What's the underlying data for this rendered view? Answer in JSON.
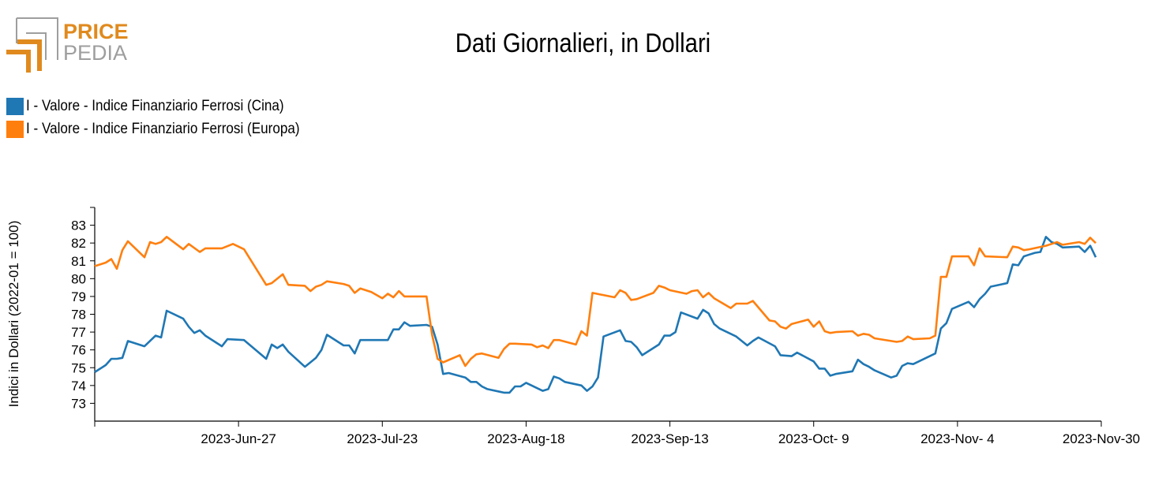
{
  "logo": {
    "line1": "PRICE",
    "line2": "PEDIA",
    "colors": {
      "orange": "#e08a1e",
      "gray": "#9e9e9e"
    }
  },
  "chart_data": {
    "type": "line",
    "title": "Dati Giornalieri, in Dollari",
    "ylabel": "Indici in Dollari (2022-01 = 100)",
    "xlabel": "",
    "x_range": [
      "2023-06-01",
      "2023-11-30"
    ],
    "ylim": [
      72,
      84
    ],
    "y_ticks": [
      73,
      74,
      75,
      76,
      77,
      78,
      79,
      80,
      81,
      82,
      83
    ],
    "x_ticks": [
      {
        "date": "2023-06-27",
        "label": "2023-Jun-27"
      },
      {
        "date": "2023-07-23",
        "label": "2023-Jul-23"
      },
      {
        "date": "2023-08-18",
        "label": "2023-Aug-18"
      },
      {
        "date": "2023-09-13",
        "label": "2023-Sep-13"
      },
      {
        "date": "2023-10-09",
        "label": "2023-Oct- 9"
      },
      {
        "date": "2023-11-04",
        "label": "2023-Nov- 4"
      },
      {
        "date": "2023-11-30",
        "label": "2023-Nov-30"
      }
    ],
    "legend_position": "top-left",
    "grid": false,
    "series": [
      {
        "name": "I - Valore - Indice Finanziario Ferrosi (Cina)",
        "color": "#1f77b4",
        "points": [
          [
            "2023-06-01",
            74.75
          ],
          [
            "2023-06-02",
            74.95
          ],
          [
            "2023-06-03",
            75.15
          ],
          [
            "2023-06-04",
            75.5
          ],
          [
            "2023-06-05",
            75.5
          ],
          [
            "2023-06-06",
            75.55
          ],
          [
            "2023-06-07",
            76.5
          ],
          [
            "2023-06-10",
            76.2
          ],
          [
            "2023-06-12",
            76.8
          ],
          [
            "2023-06-13",
            76.7
          ],
          [
            "2023-06-14",
            78.2
          ],
          [
            "2023-06-17",
            77.75
          ],
          [
            "2023-06-18",
            77.3
          ],
          [
            "2023-06-19",
            76.95
          ],
          [
            "2023-06-20",
            77.1
          ],
          [
            "2023-06-21",
            76.8
          ],
          [
            "2023-06-24",
            76.2
          ],
          [
            "2023-06-25",
            76.6
          ],
          [
            "2023-06-28",
            76.55
          ],
          [
            "2023-07-02",
            75.5
          ],
          [
            "2023-07-03",
            76.3
          ],
          [
            "2023-07-04",
            76.1
          ],
          [
            "2023-07-05",
            76.3
          ],
          [
            "2023-07-06",
            75.9
          ],
          [
            "2023-07-09",
            75.05
          ],
          [
            "2023-07-10",
            75.3
          ],
          [
            "2023-07-11",
            75.55
          ],
          [
            "2023-07-12",
            76.0
          ],
          [
            "2023-07-13",
            76.85
          ],
          [
            "2023-07-16",
            76.25
          ],
          [
            "2023-07-17",
            76.25
          ],
          [
            "2023-07-18",
            75.8
          ],
          [
            "2023-07-19",
            76.55
          ],
          [
            "2023-07-24",
            76.55
          ],
          [
            "2023-07-25",
            77.15
          ],
          [
            "2023-07-26",
            77.15
          ],
          [
            "2023-07-27",
            77.55
          ],
          [
            "2023-07-28",
            77.35
          ],
          [
            "2023-07-31",
            77.4
          ],
          [
            "2023-08-01",
            77.3
          ],
          [
            "2023-08-02",
            76.3
          ],
          [
            "2023-08-03",
            74.65
          ],
          [
            "2023-08-04",
            74.7
          ],
          [
            "2023-08-07",
            74.45
          ],
          [
            "2023-08-08",
            74.2
          ],
          [
            "2023-08-09",
            74.2
          ],
          [
            "2023-08-10",
            73.95
          ],
          [
            "2023-08-11",
            73.8
          ],
          [
            "2023-08-14",
            73.6
          ],
          [
            "2023-08-15",
            73.6
          ],
          [
            "2023-08-16",
            73.95
          ],
          [
            "2023-08-17",
            73.95
          ],
          [
            "2023-08-18",
            74.15
          ],
          [
            "2023-08-21",
            73.7
          ],
          [
            "2023-08-22",
            73.8
          ],
          [
            "2023-08-23",
            74.5
          ],
          [
            "2023-08-24",
            74.4
          ],
          [
            "2023-08-25",
            74.2
          ],
          [
            "2023-08-28",
            74.0
          ],
          [
            "2023-08-29",
            73.7
          ],
          [
            "2023-08-30",
            73.95
          ],
          [
            "2023-08-31",
            74.45
          ],
          [
            "2023-09-01",
            76.75
          ],
          [
            "2023-09-04",
            77.1
          ],
          [
            "2023-09-05",
            76.5
          ],
          [
            "2023-09-06",
            76.45
          ],
          [
            "2023-09-07",
            76.15
          ],
          [
            "2023-09-08",
            75.7
          ],
          [
            "2023-09-11",
            76.3
          ],
          [
            "2023-09-12",
            76.8
          ],
          [
            "2023-09-13",
            76.8
          ],
          [
            "2023-09-14",
            77.0
          ],
          [
            "2023-09-15",
            78.1
          ],
          [
            "2023-09-18",
            77.75
          ],
          [
            "2023-09-19",
            78.25
          ],
          [
            "2023-09-20",
            78.05
          ],
          [
            "2023-09-21",
            77.45
          ],
          [
            "2023-09-22",
            77.2
          ],
          [
            "2023-09-25",
            76.75
          ],
          [
            "2023-09-26",
            76.5
          ],
          [
            "2023-09-27",
            76.25
          ],
          [
            "2023-09-28",
            76.5
          ],
          [
            "2023-09-29",
            76.7
          ],
          [
            "2023-10-02",
            76.2
          ],
          [
            "2023-10-03",
            75.7
          ],
          [
            "2023-10-05",
            75.65
          ],
          [
            "2023-10-06",
            75.85
          ],
          [
            "2023-10-09",
            75.35
          ],
          [
            "2023-10-10",
            74.95
          ],
          [
            "2023-10-11",
            74.95
          ],
          [
            "2023-10-12",
            74.55
          ],
          [
            "2023-10-13",
            74.65
          ],
          [
            "2023-10-16",
            74.8
          ],
          [
            "2023-10-17",
            75.45
          ],
          [
            "2023-10-18",
            75.2
          ],
          [
            "2023-10-19",
            75.05
          ],
          [
            "2023-10-20",
            74.85
          ],
          [
            "2023-10-23",
            74.45
          ],
          [
            "2023-10-24",
            74.55
          ],
          [
            "2023-10-25",
            75.1
          ],
          [
            "2023-10-26",
            75.25
          ],
          [
            "2023-10-27",
            75.2
          ],
          [
            "2023-10-30",
            75.65
          ],
          [
            "2023-10-31",
            75.8
          ],
          [
            "2023-11-01",
            77.2
          ],
          [
            "2023-11-02",
            77.5
          ],
          [
            "2023-11-03",
            78.3
          ],
          [
            "2023-11-06",
            78.7
          ],
          [
            "2023-11-07",
            78.4
          ],
          [
            "2023-11-08",
            78.85
          ],
          [
            "2023-11-09",
            79.15
          ],
          [
            "2023-11-10",
            79.55
          ],
          [
            "2023-11-13",
            79.75
          ],
          [
            "2023-11-14",
            80.8
          ],
          [
            "2023-11-15",
            80.75
          ],
          [
            "2023-11-16",
            81.25
          ],
          [
            "2023-11-17",
            81.35
          ],
          [
            "2023-11-18",
            81.45
          ],
          [
            "2023-11-19",
            81.5
          ],
          [
            "2023-11-20",
            82.35
          ],
          [
            "2023-11-21",
            82.05
          ],
          [
            "2023-11-22",
            81.95
          ],
          [
            "2023-11-23",
            81.75
          ],
          [
            "2023-11-26",
            81.8
          ],
          [
            "2023-11-27",
            81.5
          ],
          [
            "2023-11-28",
            81.85
          ],
          [
            "2023-11-29",
            81.2
          ]
        ]
      },
      {
        "name": "I - Valore - Indice Finanziario Ferrosi (Europa)",
        "color": "#ff7f0e",
        "points": [
          [
            "2023-06-01",
            80.7
          ],
          [
            "2023-06-02",
            80.8
          ],
          [
            "2023-06-03",
            80.9
          ],
          [
            "2023-06-04",
            81.1
          ],
          [
            "2023-06-05",
            80.55
          ],
          [
            "2023-06-06",
            81.6
          ],
          [
            "2023-06-07",
            82.1
          ],
          [
            "2023-06-10",
            81.2
          ],
          [
            "2023-06-11",
            82.05
          ],
          [
            "2023-06-12",
            81.95
          ],
          [
            "2023-06-13",
            82.05
          ],
          [
            "2023-06-14",
            82.35
          ],
          [
            "2023-06-17",
            81.65
          ],
          [
            "2023-06-18",
            81.95
          ],
          [
            "2023-06-20",
            81.5
          ],
          [
            "2023-06-21",
            81.7
          ],
          [
            "2023-06-24",
            81.7
          ],
          [
            "2023-06-26",
            81.95
          ],
          [
            "2023-06-28",
            81.65
          ],
          [
            "2023-07-02",
            79.65
          ],
          [
            "2023-07-03",
            79.75
          ],
          [
            "2023-07-05",
            80.25
          ],
          [
            "2023-07-06",
            79.65
          ],
          [
            "2023-07-09",
            79.6
          ],
          [
            "2023-07-10",
            79.3
          ],
          [
            "2023-07-11",
            79.55
          ],
          [
            "2023-07-12",
            79.65
          ],
          [
            "2023-07-13",
            79.85
          ],
          [
            "2023-07-16",
            79.7
          ],
          [
            "2023-07-17",
            79.6
          ],
          [
            "2023-07-18",
            79.2
          ],
          [
            "2023-07-19",
            79.45
          ],
          [
            "2023-07-21",
            79.25
          ],
          [
            "2023-07-23",
            78.9
          ],
          [
            "2023-07-24",
            79.15
          ],
          [
            "2023-07-25",
            78.95
          ],
          [
            "2023-07-26",
            79.3
          ],
          [
            "2023-07-27",
            79.0
          ],
          [
            "2023-07-30",
            79.0
          ],
          [
            "2023-07-31",
            79.0
          ],
          [
            "2023-08-01",
            76.85
          ],
          [
            "2023-08-02",
            75.5
          ],
          [
            "2023-08-03",
            75.3
          ],
          [
            "2023-08-06",
            75.7
          ],
          [
            "2023-08-07",
            75.1
          ],
          [
            "2023-08-08",
            75.5
          ],
          [
            "2023-08-09",
            75.75
          ],
          [
            "2023-08-10",
            75.8
          ],
          [
            "2023-08-13",
            75.55
          ],
          [
            "2023-08-14",
            76.05
          ],
          [
            "2023-08-15",
            76.35
          ],
          [
            "2023-08-16",
            76.35
          ],
          [
            "2023-08-19",
            76.3
          ],
          [
            "2023-08-20",
            76.15
          ],
          [
            "2023-08-21",
            76.25
          ],
          [
            "2023-08-22",
            76.1
          ],
          [
            "2023-08-23",
            76.55
          ],
          [
            "2023-08-24",
            76.55
          ],
          [
            "2023-08-27",
            76.3
          ],
          [
            "2023-08-28",
            77.05
          ],
          [
            "2023-08-29",
            76.8
          ],
          [
            "2023-08-30",
            79.2
          ],
          [
            "2023-09-03",
            78.95
          ],
          [
            "2023-09-04",
            79.35
          ],
          [
            "2023-09-05",
            79.2
          ],
          [
            "2023-09-06",
            78.8
          ],
          [
            "2023-09-07",
            78.85
          ],
          [
            "2023-09-10",
            79.2
          ],
          [
            "2023-09-11",
            79.6
          ],
          [
            "2023-09-12",
            79.5
          ],
          [
            "2023-09-13",
            79.35
          ],
          [
            "2023-09-16",
            79.15
          ],
          [
            "2023-09-17",
            79.3
          ],
          [
            "2023-09-18",
            79.35
          ],
          [
            "2023-09-19",
            78.95
          ],
          [
            "2023-09-20",
            79.2
          ],
          [
            "2023-09-21",
            78.9
          ],
          [
            "2023-09-24",
            78.35
          ],
          [
            "2023-09-25",
            78.6
          ],
          [
            "2023-09-26",
            78.6
          ],
          [
            "2023-09-27",
            78.6
          ],
          [
            "2023-09-28",
            78.75
          ],
          [
            "2023-10-01",
            77.65
          ],
          [
            "2023-10-02",
            77.6
          ],
          [
            "2023-10-03",
            77.3
          ],
          [
            "2023-10-04",
            77.2
          ],
          [
            "2023-10-05",
            77.45
          ],
          [
            "2023-10-08",
            77.7
          ],
          [
            "2023-10-09",
            77.3
          ],
          [
            "2023-10-10",
            77.6
          ],
          [
            "2023-10-11",
            77.05
          ],
          [
            "2023-10-12",
            76.95
          ],
          [
            "2023-10-13",
            77.0
          ],
          [
            "2023-10-16",
            77.05
          ],
          [
            "2023-10-17",
            76.8
          ],
          [
            "2023-10-18",
            76.9
          ],
          [
            "2023-10-19",
            76.85
          ],
          [
            "2023-10-20",
            76.65
          ],
          [
            "2023-10-23",
            76.5
          ],
          [
            "2023-10-24",
            76.45
          ],
          [
            "2023-10-25",
            76.5
          ],
          [
            "2023-10-26",
            76.75
          ],
          [
            "2023-10-27",
            76.6
          ],
          [
            "2023-10-30",
            76.65
          ],
          [
            "2023-10-31",
            76.8
          ],
          [
            "2023-11-01",
            80.1
          ],
          [
            "2023-11-02",
            80.1
          ],
          [
            "2023-11-03",
            81.25
          ],
          [
            "2023-11-06",
            81.25
          ],
          [
            "2023-11-07",
            80.75
          ],
          [
            "2023-11-08",
            81.7
          ],
          [
            "2023-11-09",
            81.25
          ],
          [
            "2023-11-13",
            81.2
          ],
          [
            "2023-11-14",
            81.8
          ],
          [
            "2023-11-15",
            81.75
          ],
          [
            "2023-11-16",
            81.6
          ],
          [
            "2023-11-17",
            81.65
          ],
          [
            "2023-11-20",
            81.85
          ],
          [
            "2023-11-21",
            81.95
          ],
          [
            "2023-11-22",
            82.05
          ],
          [
            "2023-11-23",
            81.9
          ],
          [
            "2023-11-26",
            82.05
          ],
          [
            "2023-11-27",
            81.95
          ],
          [
            "2023-11-28",
            82.3
          ],
          [
            "2023-11-29",
            82.0
          ]
        ]
      }
    ]
  }
}
